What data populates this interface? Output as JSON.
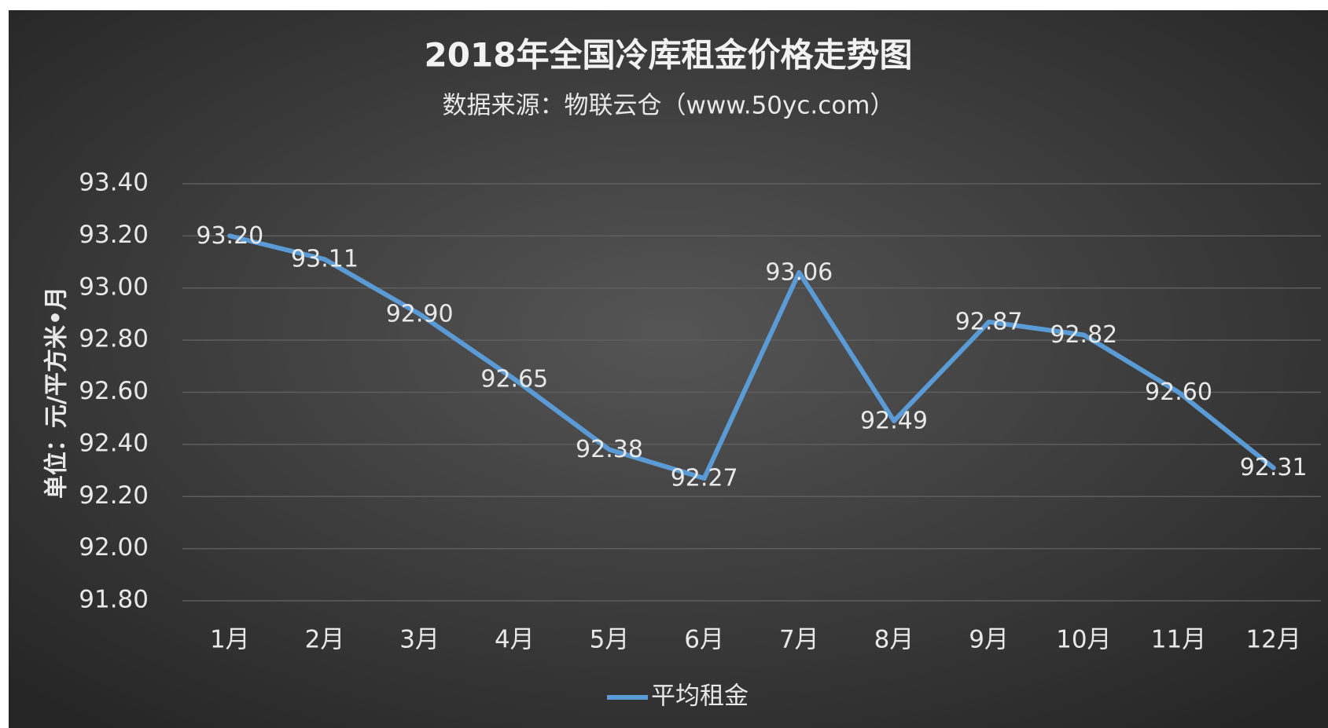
{
  "chart_data": {
    "type": "line",
    "title": "2018年全国冷库租金价格走势图",
    "subtitle": "数据来源：物联云仓（www.50yc.com）",
    "y_label": "单位：元/平方米•月",
    "categories": [
      "1月",
      "2月",
      "3月",
      "4月",
      "5月",
      "6月",
      "7月",
      "8月",
      "9月",
      "10月",
      "11月",
      "12月"
    ],
    "series": [
      {
        "name": "平均租金",
        "color": "#5b9bd5",
        "values": [
          93.2,
          93.11,
          92.9,
          92.65,
          92.38,
          92.27,
          93.06,
          92.49,
          92.87,
          92.82,
          92.6,
          92.31
        ],
        "value_labels": [
          "93.20",
          "93.11",
          "92.90",
          "92.65",
          "92.38",
          "92.27",
          "93.06",
          "92.49",
          "92.87",
          "92.82",
          "92.60",
          "92.31"
        ]
      }
    ],
    "ylim": [
      91.8,
      93.4
    ],
    "yticks": [
      {
        "value": 91.8,
        "label": "91.80"
      },
      {
        "value": 92.0,
        "label": "92.00"
      },
      {
        "value": 92.2,
        "label": "92.20"
      },
      {
        "value": 92.4,
        "label": "92.40"
      },
      {
        "value": 92.6,
        "label": "92.60"
      },
      {
        "value": 92.8,
        "label": "92.80"
      },
      {
        "value": 93.0,
        "label": "93.00"
      },
      {
        "value": 93.2,
        "label": "93.20"
      },
      {
        "value": 93.4,
        "label": "93.40"
      }
    ],
    "grid": true,
    "legend": "bottom"
  }
}
